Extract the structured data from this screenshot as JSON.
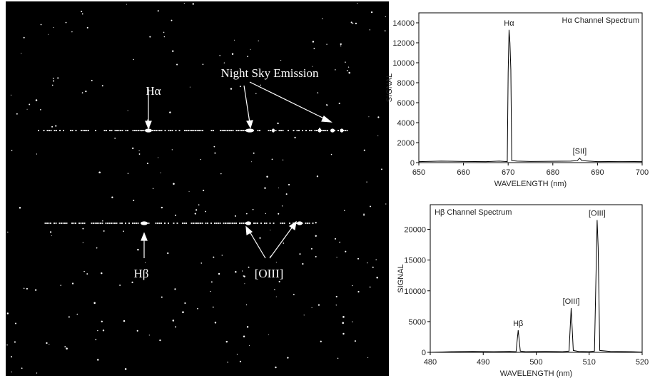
{
  "image": {
    "labels": [
      "Hα",
      "Night Sky Emission",
      "Hβ",
      "[OIII]"
    ]
  },
  "chart_data": [
    {
      "type": "line",
      "title": "Hα Channel Spectrum",
      "xlabel": "WAVELENGTH (nm)",
      "ylabel": "SIGNAL",
      "x": [
        650,
        655,
        660,
        665,
        668,
        669.8,
        670,
        670.2,
        670.4,
        670.6,
        670.8,
        672,
        675,
        680,
        684,
        685.5,
        686,
        686.5,
        688,
        690,
        695,
        700
      ],
      "values": [
        100,
        150,
        120,
        100,
        150,
        100,
        9000,
        13300,
        12000,
        9300,
        200,
        150,
        120,
        130,
        150,
        200,
        450,
        200,
        150,
        100,
        120,
        100
      ],
      "color": "#000000",
      "xlim": [
        650,
        700
      ],
      "xticks": [
        650,
        660,
        670,
        680,
        690,
        700
      ],
      "ylim": [
        0,
        15000
      ],
      "yticks": [
        0,
        2000,
        4000,
        6000,
        8000,
        10000,
        12000,
        14000
      ],
      "annotations": [
        {
          "text": "Hα",
          "x": 670.2
        },
        {
          "text": "[SII]",
          "x": 686
        }
      ]
    },
    {
      "type": "line",
      "title": "Hβ Channel Spectrum",
      "xlabel": "WAVELENGTH (nm)",
      "ylabel": "SIGNAL",
      "x": [
        480,
        484,
        488,
        492,
        495,
        496.2,
        496.6,
        497,
        498,
        502,
        505,
        506.2,
        506.6,
        507,
        508,
        510,
        511,
        511.3,
        511.5,
        511.7,
        512,
        514,
        518,
        520
      ],
      "values": [
        0,
        100,
        150,
        100,
        150,
        100,
        3600,
        200,
        100,
        150,
        100,
        200,
        7200,
        300,
        150,
        100,
        200,
        13000,
        21500,
        17000,
        300,
        150,
        100,
        50
      ],
      "color": "#000000",
      "xlim": [
        480,
        520
      ],
      "xticks": [
        480,
        490,
        500,
        510,
        520
      ],
      "ylim": [
        0,
        24000
      ],
      "yticks": [
        0,
        5000,
        10000,
        15000,
        20000
      ],
      "annotations": [
        {
          "text": "Hβ",
          "x": 496.6
        },
        {
          "text": "[OIII]",
          "x": 506.6
        },
        {
          "text": "[OIII]",
          "x": 511.5
        }
      ]
    }
  ]
}
